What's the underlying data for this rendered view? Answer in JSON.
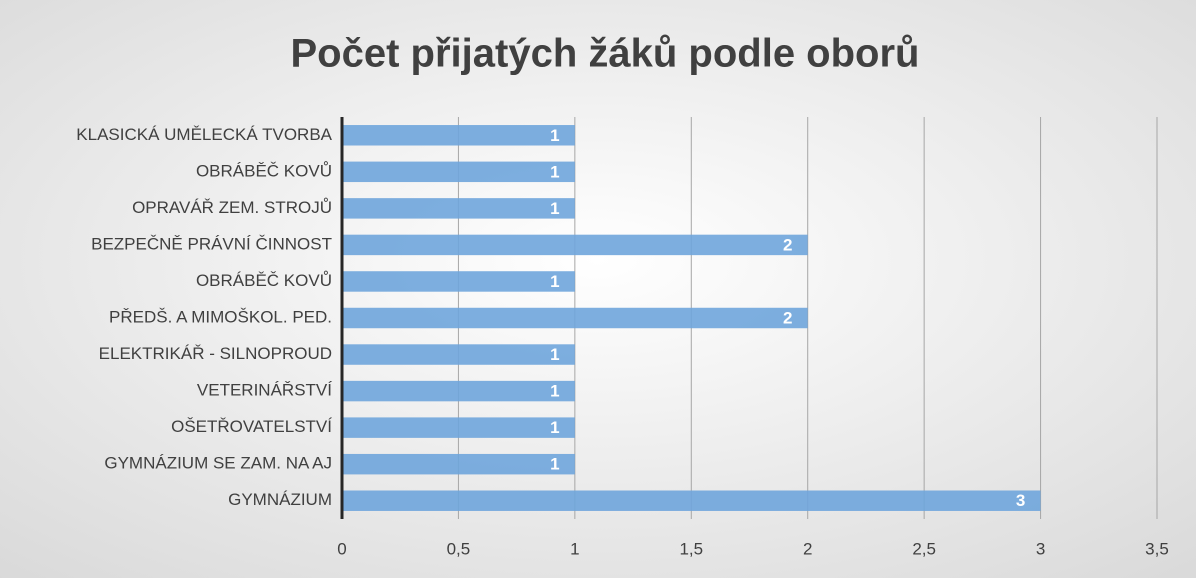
{
  "chart_data": {
    "type": "bar",
    "orientation": "horizontal",
    "title": "Počet přijatých žáků podle oborů",
    "categories": [
      "KLASICKÁ UMĚLECKÁ TVORBA",
      "OBRÁBĚČ KOVŮ",
      "OPRAVÁŘ ZEM. STROJŮ",
      "BEZPEČNĚ PRÁVNÍ ČINNOST",
      "OBRÁBĚČ KOVŮ",
      "PŘEDŠ. A MIMOŠKOL. PED.",
      "ELEKTRIKÁŘ - SILNOPROUD",
      "VETERINÁŘSTVÍ",
      "OŠETŘOVATELSTVÍ",
      "GYMNÁZIUM SE ZAM. NA AJ",
      "GYMNÁZIUM"
    ],
    "values": [
      1,
      1,
      1,
      2,
      1,
      2,
      1,
      1,
      1,
      1,
      3
    ],
    "color": "#6fa5dc",
    "xlim": [
      0,
      3.5
    ],
    "xticks": [
      0,
      {
        "value": 0.5,
        "label": "0,5"
      },
      1,
      {
        "value": 1.5,
        "label": "1,5"
      },
      2,
      {
        "value": 2.5,
        "label": "2,5"
      },
      3,
      {
        "value": 3.5,
        "label": "3,5"
      }
    ],
    "grid": true
  }
}
